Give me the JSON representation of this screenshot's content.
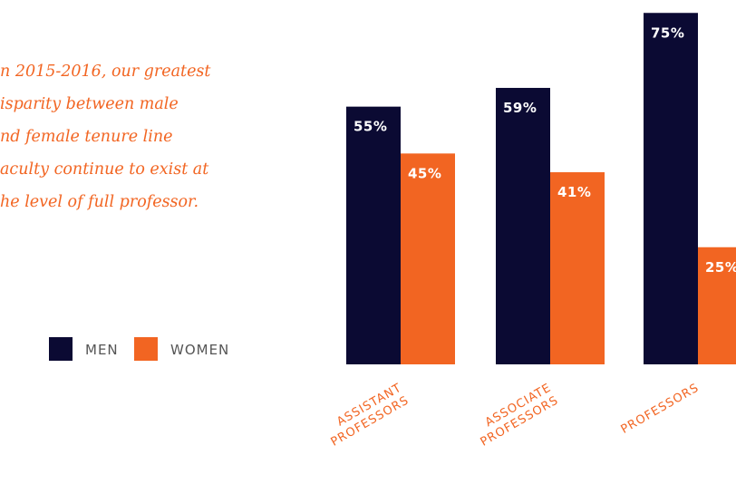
{
  "chart_data": {
    "type": "bar",
    "quote": [
      "n 2015-2016, our greatest",
      "isparity between male",
      "nd female tenure line",
      "aculty continue to exist at",
      "he level of full professor."
    ],
    "categories": [
      [
        "ASSISTANT",
        "PROFESSORS"
      ],
      [
        "ASSOCIATE",
        "PROFESSORS"
      ],
      [
        "PROFESSORS"
      ]
    ],
    "series": [
      {
        "name": "MEN",
        "color": "#0b0a33",
        "values": [
          55,
          59,
          75
        ],
        "value_labels": [
          "55%",
          "59%",
          "75%"
        ]
      },
      {
        "name": "WOMEN",
        "color": "#f26522",
        "values": [
          45,
          41,
          25
        ],
        "value_labels": [
          "45%",
          "41%",
          "25%"
        ]
      }
    ]
  }
}
